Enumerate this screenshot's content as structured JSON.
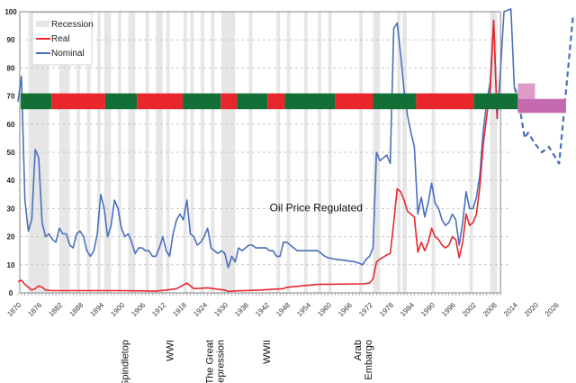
{
  "chart_data": {
    "type": "line",
    "title": "",
    "xlabel": "",
    "ylabel": "",
    "ylim": [
      0,
      100
    ],
    "yticks": [
      0,
      10,
      20,
      30,
      40,
      50,
      60,
      70,
      80,
      90,
      100
    ],
    "xticks": [
      "1870",
      "1876",
      "1882",
      "1888",
      "1894",
      "1900",
      "1906",
      "1912",
      "1918",
      "1924",
      "1930",
      "1936",
      "1942",
      "1948",
      "1954",
      "1960",
      "1966",
      "1972",
      "1978",
      "1984",
      "1990",
      "1996",
      "2002",
      "2008",
      "2014",
      "2020",
      "2026"
    ],
    "grid": "horizontal dashed",
    "legend": {
      "placement": "top-left",
      "entries": [
        "Recession",
        "Real",
        "Nominal"
      ]
    },
    "colors": {
      "real": "#e8262b",
      "nominal": "#4a6fbd",
      "recession": "#e6e6e6",
      "band_green": "#127036",
      "band_red": "#e8262b",
      "forecast_light": "#dd9cc8",
      "forecast_dark": "#c66ab0"
    },
    "recessions": [
      [
        1873,
        1879
      ],
      [
        1882,
        1885
      ],
      [
        1887,
        1888
      ],
      [
        1890,
        1891
      ],
      [
        1893,
        1894
      ],
      [
        1895,
        1897
      ],
      [
        1899,
        1900
      ],
      [
        1902,
        1904
      ],
      [
        1907,
        1908
      ],
      [
        1910,
        1912
      ],
      [
        1913,
        1914
      ],
      [
        1918,
        1919
      ],
      [
        1920,
        1921
      ],
      [
        1923,
        1924
      ],
      [
        1926,
        1927
      ],
      [
        1929,
        1933
      ],
      [
        1937,
        1938
      ],
      [
        1945,
        1946
      ],
      [
        1948,
        1949
      ],
      [
        1953,
        1954
      ],
      [
        1957,
        1958
      ],
      [
        1960,
        1961
      ],
      [
        1969,
        1970
      ],
      [
        1973,
        1975
      ],
      [
        1980,
        1981
      ],
      [
        1981.5,
        1982.8
      ],
      [
        1990,
        1991
      ],
      [
        2001,
        2002
      ],
      [
        2007,
        2009
      ]
    ],
    "series": [
      {
        "name": "Nominal",
        "style": "solid",
        "points": [
          [
            1870,
            68
          ],
          [
            1871,
            77
          ],
          [
            1872,
            33
          ],
          [
            1873,
            22
          ],
          [
            1874,
            26
          ],
          [
            1875,
            51
          ],
          [
            1876,
            48
          ],
          [
            1877,
            25
          ],
          [
            1878,
            20
          ],
          [
            1879,
            21
          ],
          [
            1880,
            19
          ],
          [
            1881,
            18
          ],
          [
            1882,
            23
          ],
          [
            1883,
            21
          ],
          [
            1884,
            21
          ],
          [
            1885,
            17
          ],
          [
            1886,
            16
          ],
          [
            1887,
            21
          ],
          [
            1888,
            22
          ],
          [
            1889,
            20
          ],
          [
            1890,
            15
          ],
          [
            1891,
            13
          ],
          [
            1892,
            15
          ],
          [
            1893,
            21
          ],
          [
            1894,
            35
          ],
          [
            1895,
            30
          ],
          [
            1896,
            20
          ],
          [
            1897,
            24
          ],
          [
            1898,
            33
          ],
          [
            1899,
            30
          ],
          [
            1900,
            23
          ],
          [
            1901,
            20
          ],
          [
            1902,
            21
          ],
          [
            1903,
            18
          ],
          [
            1904,
            14
          ],
          [
            1905,
            16
          ],
          [
            1906,
            16
          ],
          [
            1907,
            15
          ],
          [
            1908,
            15
          ],
          [
            1909,
            13
          ],
          [
            1910,
            13
          ],
          [
            1911,
            16
          ],
          [
            1912,
            20
          ],
          [
            1913,
            15
          ],
          [
            1914,
            13
          ],
          [
            1915,
            21
          ],
          [
            1916,
            26
          ],
          [
            1917,
            28
          ],
          [
            1918,
            26
          ],
          [
            1919,
            33
          ],
          [
            1920,
            21
          ],
          [
            1921,
            20
          ],
          [
            1922,
            17
          ],
          [
            1923,
            18
          ],
          [
            1924,
            20
          ],
          [
            1925,
            23
          ],
          [
            1926,
            16
          ],
          [
            1927,
            15
          ],
          [
            1928,
            14
          ],
          [
            1929,
            15
          ],
          [
            1930,
            14
          ],
          [
            1931,
            9
          ],
          [
            1932,
            13
          ],
          [
            1933,
            11
          ],
          [
            1934,
            16
          ],
          [
            1935,
            15
          ],
          [
            1936,
            16
          ],
          [
            1937,
            17
          ],
          [
            1938,
            17
          ],
          [
            1939,
            16
          ],
          [
            1940,
            16
          ],
          [
            1941,
            16
          ],
          [
            1942,
            16
          ],
          [
            1943,
            15
          ],
          [
            1944,
            15
          ],
          [
            1945,
            13
          ],
          [
            1946,
            13
          ],
          [
            1947,
            18
          ],
          [
            1948,
            18
          ],
          [
            1949,
            17
          ],
          [
            1950,
            16
          ],
          [
            1951,
            15
          ],
          [
            1952,
            15
          ],
          [
            1953,
            15
          ],
          [
            1954,
            15
          ],
          [
            1955,
            15
          ],
          [
            1956,
            15
          ],
          [
            1957,
            15
          ],
          [
            1958,
            14
          ],
          [
            1959,
            13
          ],
          [
            1960,
            12.5
          ],
          [
            1962,
            12
          ],
          [
            1965,
            11.5
          ],
          [
            1968,
            11
          ],
          [
            1970,
            10
          ],
          [
            1971,
            12
          ],
          [
            1972,
            13
          ],
          [
            1973,
            16
          ],
          [
            1974,
            50
          ],
          [
            1975,
            47
          ],
          [
            1976,
            48
          ],
          [
            1977,
            49
          ],
          [
            1978,
            46
          ],
          [
            1979,
            94
          ],
          [
            1980,
            96
          ],
          [
            1981,
            85
          ],
          [
            1982,
            72
          ],
          [
            1983,
            63
          ],
          [
            1984,
            57
          ],
          [
            1985,
            52
          ],
          [
            1986,
            28
          ],
          [
            1987,
            34
          ],
          [
            1988,
            27
          ],
          [
            1989,
            32
          ],
          [
            1990,
            39
          ],
          [
            1991,
            32
          ],
          [
            1992,
            30
          ],
          [
            1993,
            26
          ],
          [
            1994,
            24
          ],
          [
            1995,
            25
          ],
          [
            1996,
            28
          ],
          [
            1997,
            26
          ],
          [
            1998,
            17
          ],
          [
            1999,
            25
          ],
          [
            2000,
            36
          ],
          [
            2001,
            30
          ],
          [
            2002,
            30
          ],
          [
            2003,
            34
          ],
          [
            2004,
            42
          ],
          [
            2005,
            58
          ],
          [
            2006,
            68
          ],
          [
            2007,
            75
          ],
          [
            2008,
            97
          ],
          [
            2009,
            62
          ],
          [
            2010,
            80
          ],
          [
            2011,
            100
          ],
          [
            2013,
            101
          ],
          [
            2014,
            73
          ]
        ]
      },
      {
        "name": "Real",
        "style": "solid",
        "points": [
          [
            1870,
            4
          ],
          [
            1871,
            4.5
          ],
          [
            1872,
            3
          ],
          [
            1874,
            1
          ],
          [
            1875,
            1.5
          ],
          [
            1876,
            2.5
          ],
          [
            1877,
            2
          ],
          [
            1878,
            1
          ],
          [
            1880,
            0.8
          ],
          [
            1890,
            0.8
          ],
          [
            1900,
            0.8
          ],
          [
            1910,
            0.6
          ],
          [
            1913,
            1
          ],
          [
            1916,
            1.5
          ],
          [
            1919,
            3.5
          ],
          [
            1921,
            1.5
          ],
          [
            1925,
            1.8
          ],
          [
            1930,
            1
          ],
          [
            1931,
            0.5
          ],
          [
            1933,
            0.7
          ],
          [
            1940,
            1
          ],
          [
            1947,
            1.5
          ],
          [
            1948,
            2
          ],
          [
            1957,
            3
          ],
          [
            1970,
            3.2
          ],
          [
            1972,
            3.5
          ],
          [
            1973,
            5
          ],
          [
            1974,
            11
          ],
          [
            1975,
            12
          ],
          [
            1977,
            13.5
          ],
          [
            1978,
            14
          ],
          [
            1979,
            25
          ],
          [
            1980,
            37
          ],
          [
            1981,
            36
          ],
          [
            1982,
            33
          ],
          [
            1983,
            29
          ],
          [
            1984,
            28
          ],
          [
            1985,
            27
          ],
          [
            1986,
            14.5
          ],
          [
            1987,
            18
          ],
          [
            1988,
            15
          ],
          [
            1989,
            18
          ],
          [
            1990,
            23
          ],
          [
            1991,
            20
          ],
          [
            1992,
            19
          ],
          [
            1993,
            17
          ],
          [
            1994,
            16
          ],
          [
            1995,
            17
          ],
          [
            1996,
            20
          ],
          [
            1997,
            19
          ],
          [
            1998,
            12.5
          ],
          [
            1999,
            18
          ],
          [
            2000,
            28
          ],
          [
            2001,
            24
          ],
          [
            2002,
            25
          ],
          [
            2003,
            28
          ],
          [
            2004,
            38
          ],
          [
            2005,
            53
          ],
          [
            2006,
            63
          ],
          [
            2007,
            72
          ],
          [
            2008,
            97
          ],
          [
            2009,
            62
          ]
        ]
      },
      {
        "style": "dashed",
        "points": [
          [
            2014,
            73
          ],
          [
            2015,
            70
          ],
          [
            2017,
            55
          ],
          [
            2018,
            57
          ],
          [
            2020,
            53
          ],
          [
            2022,
            50
          ],
          [
            2024,
            52
          ],
          [
            2027,
            46
          ],
          [
            2031,
            98
          ]
        ]
      }
    ],
    "phase_band": {
      "y_range": [
        65,
        70
      ],
      "segments": [
        [
          "green",
          1870.8,
          1879.7
        ],
        [
          "red",
          1879.7,
          1895.3
        ],
        [
          "green",
          1895.3,
          1904.5
        ],
        [
          "red",
          1904.5,
          1917.8
        ],
        [
          "green",
          1917.8,
          1928.8
        ],
        [
          "red",
          1928.8,
          1933.5
        ],
        [
          "green",
          1933.5,
          1942.4
        ],
        [
          "red",
          1942.4,
          1947.4
        ],
        [
          "green",
          1947.4,
          1962
        ],
        [
          "red",
          1962,
          1973
        ],
        [
          "green",
          1973,
          1985.5
        ],
        [
          "red",
          1985.5,
          2002.2
        ],
        [
          "green",
          2002.2,
          2015
        ]
      ]
    },
    "forecast_boxes": [
      {
        "color": "light",
        "x": [
          2015,
          2020
        ],
        "y": [
          69,
          74.5
        ]
      },
      {
        "color": "dark",
        "x": [
          2015,
          2029
        ],
        "y": [
          64,
          69
        ]
      }
    ],
    "annotations": [
      {
        "text": "Oil Price Regulated",
        "x": 1943,
        "y": 29
      }
    ],
    "events": [
      {
        "lines": [
          "Spindletop"
        ],
        "year": 1901
      },
      {
        "lines": [
          "WWI"
        ],
        "year": 1914
      },
      {
        "lines": [
          "The Great",
          "Depression"
        ],
        "year": 1927
      },
      {
        "lines": [
          "WWII"
        ],
        "year": 1942
      },
      {
        "lines": [
          "Arab",
          "Oil Embargo"
        ],
        "year": 1970
      }
    ]
  }
}
